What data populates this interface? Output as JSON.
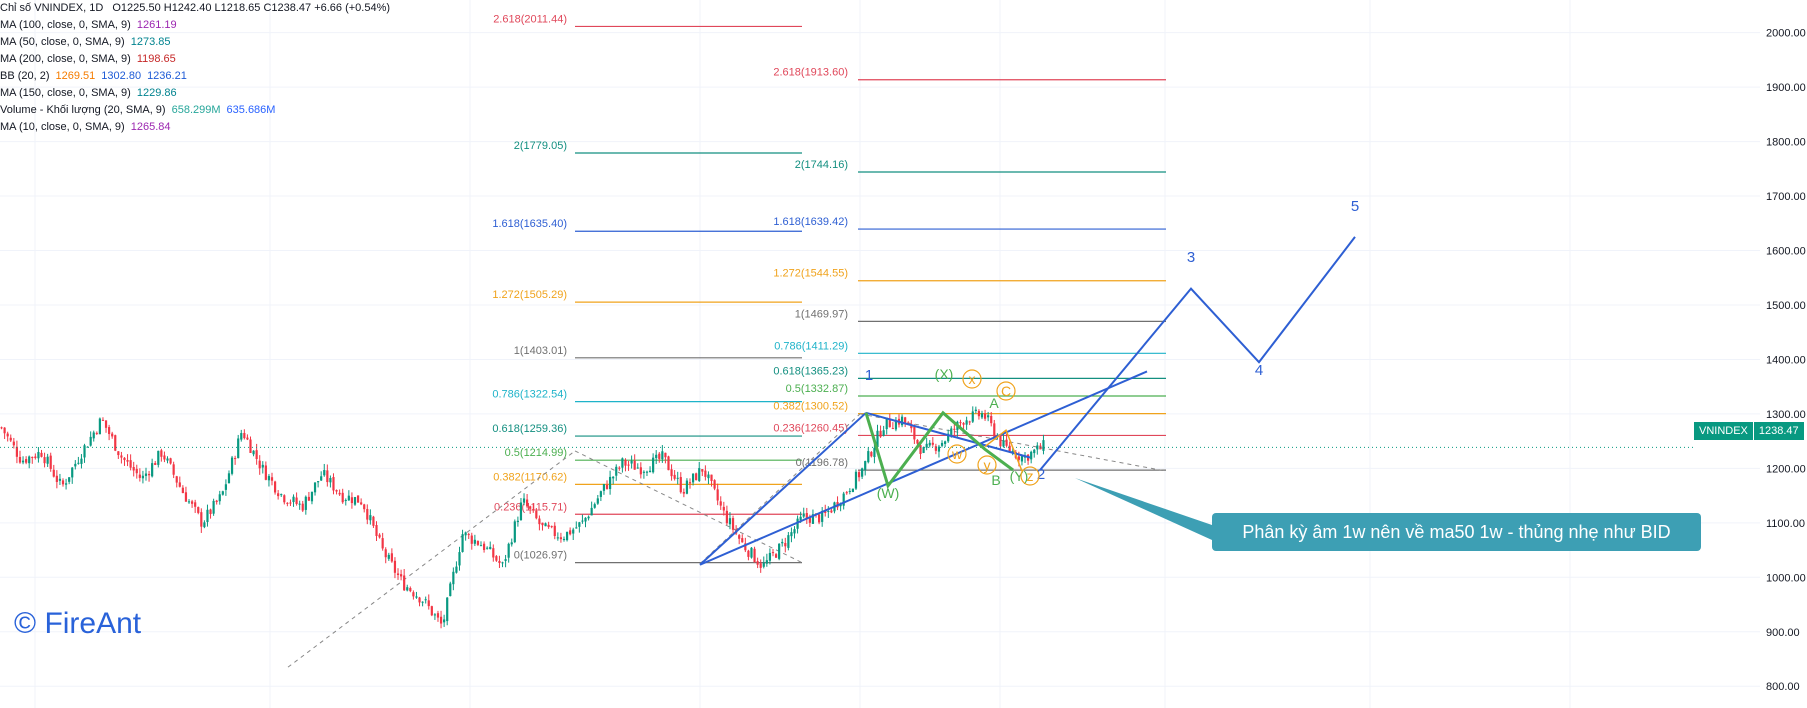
{
  "chart_data": {
    "type": "candlestick",
    "symbol": "VNINDEX",
    "last_price_label": "1238.47",
    "y_axis": {
      "range": [
        760,
        2060
      ],
      "ticks": [
        "2000.00",
        "1900.00",
        "1800.00",
        "1700.00",
        "1600.00",
        "1500.00",
        "1400.00",
        "1300.00",
        "1200.00",
        "1100.00",
        "1000.00",
        "900.00",
        "800.00"
      ],
      "tick_values": [
        2000,
        1900,
        1800,
        1700,
        1600,
        1500,
        1400,
        1300,
        1200,
        1100,
        1000,
        900,
        800
      ]
    },
    "fib_sets": [
      {
        "color_role": "left",
        "levels": [
          {
            "label": "2.618(2011.44)",
            "value": 2011.44,
            "color": "#e0475a"
          },
          {
            "label": "2(1779.05)",
            "value": 1779.05,
            "color": "#138f80"
          },
          {
            "label": "1.618(1635.40)",
            "value": 1635.4,
            "color": "#2e5fd3"
          },
          {
            "label": "1.272(1505.29)",
            "value": 1505.29,
            "color": "#f0a31c"
          },
          {
            "label": "1(1403.01)",
            "value": 1403.01,
            "color": "#707070"
          },
          {
            "label": "0.786(1322.54)",
            "value": 1322.54,
            "color": "#1fb3c9"
          },
          {
            "label": "0.618(1259.36)",
            "value": 1259.36,
            "color": "#138f80"
          },
          {
            "label": "0.5(1214.99)",
            "value": 1214.99,
            "color": "#4caf50"
          },
          {
            "label": "0.382(1170.62)",
            "value": 1170.62,
            "color": "#f0a31c"
          },
          {
            "label": "0.236(1115.71)",
            "value": 1115.71,
            "color": "#e0475a"
          },
          {
            "label": "0(1026.97)",
            "value": 1026.97,
            "color": "#707070"
          }
        ]
      },
      {
        "color_role": "right",
        "levels": [
          {
            "label": "2.618(1913.60)",
            "value": 1913.6,
            "color": "#e0475a"
          },
          {
            "label": "2(1744.16)",
            "value": 1744.16,
            "color": "#138f80"
          },
          {
            "label": "1.618(1639.42)",
            "value": 1639.42,
            "color": "#2e5fd3"
          },
          {
            "label": "1.272(1544.55)",
            "value": 1544.55,
            "color": "#f0a31c"
          },
          {
            "label": "1(1469.97)",
            "value": 1469.97,
            "color": "#707070"
          },
          {
            "label": "0.786(1411.29)",
            "value": 1411.29,
            "color": "#1fb3c9"
          },
          {
            "label": "0.618(1365.23)",
            "value": 1365.23,
            "color": "#138f80"
          },
          {
            "label": "0.5(1332.87)",
            "value": 1332.87,
            "color": "#4caf50"
          },
          {
            "label": "0.382(1300.52)",
            "value": 1300.52,
            "color": "#f0a31c"
          },
          {
            "label": "0.236(1260.45)",
            "value": 1260.45,
            "color": "#e0475a"
          },
          {
            "label": "0(1196.78)",
            "value": 1196.78,
            "color": "#707070"
          }
        ]
      }
    ],
    "wave_labels": [
      {
        "text": "1",
        "color": "#2e5fd3"
      },
      {
        "text": "2",
        "color": "#2e5fd3"
      },
      {
        "text": "3",
        "color": "#2e5fd3"
      },
      {
        "text": "4",
        "color": "#2e5fd3"
      },
      {
        "text": "5",
        "color": "#2e5fd3"
      },
      {
        "text": "(W)",
        "color": "#4caf50"
      },
      {
        "text": "(X)",
        "color": "#4caf50"
      },
      {
        "text": "(Y)",
        "color": "#4caf50"
      },
      {
        "text": "A",
        "color": "#4caf50"
      },
      {
        "text": "B",
        "color": "#4caf50"
      },
      {
        "text": "C",
        "color": "#f0a31c"
      },
      {
        "text": "w",
        "color": "#f0a31c"
      },
      {
        "text": "x",
        "color": "#f0a31c"
      },
      {
        "text": "y",
        "color": "#f0a31c"
      },
      {
        "text": "z",
        "color": "#f0a31c"
      }
    ],
    "projection_path": [
      1196.78,
      1530,
      1395,
      1625
    ],
    "price_path_keypoints": [
      1275,
      1215,
      1230,
      1165,
      1230,
      1290,
      1220,
      1180,
      1230,
      1160,
      1100,
      1150,
      1270,
      1200,
      1150,
      1130,
      1190,
      1150,
      1140,
      1050,
      990,
      960,
      910,
      1080,
      1060,
      1020,
      1140,
      1090,
      1075,
      1100,
      1160,
      1210,
      1200,
      1220,
      1160,
      1200,
      1120,
      1060,
      1020,
      1060,
      1110,
      1110,
      1150,
      1200,
      1280,
      1290,
      1230,
      1250,
      1290,
      1300,
      1240,
      1220,
      1240
    ]
  },
  "legend": {
    "title": "Chỉ số VNINDEX, 1D",
    "ohlc": "O1225.50  H1242.40  L1218.65  C1238.47  +6.66 (+0.54%)",
    "indicators": [
      {
        "label": "MA (100, close, 0, SMA, 9)",
        "values": [
          {
            "v": "1261.19",
            "c": "#9c27b0"
          }
        ]
      },
      {
        "label": "MA (50, close, 0, SMA, 9)",
        "values": [
          {
            "v": "1273.85",
            "c": "#00838f"
          }
        ]
      },
      {
        "label": "MA (200, close, 0, SMA, 9)",
        "values": [
          {
            "v": "1198.65",
            "c": "#c62828"
          }
        ]
      },
      {
        "label": "BB (20, 2)",
        "values": [
          {
            "v": "1269.51",
            "c": "#f57c00"
          },
          {
            "v": "1302.80",
            "c": "#1e5bd6"
          },
          {
            "v": "1236.21",
            "c": "#1e5bd6"
          }
        ]
      },
      {
        "label": "MA (150, close, 0, SMA, 9)",
        "values": [
          {
            "v": "1229.86",
            "c": "#00838f"
          }
        ]
      },
      {
        "label": "Volume - Khối lượng (20, SMA, 9)",
        "values": [
          {
            "v": "658.299M",
            "c": "#26a69a"
          },
          {
            "v": "635.686M",
            "c": "#2962ff"
          }
        ]
      },
      {
        "label": "MA (10, close, 0, SMA, 9)",
        "values": [
          {
            "v": "1265.84",
            "c": "#9c27b0"
          }
        ]
      }
    ]
  },
  "annotation": "Phân kỳ âm 1w nên về ma50 1w - thủng nhẹ như BID",
  "watermark": "© FireAnt"
}
